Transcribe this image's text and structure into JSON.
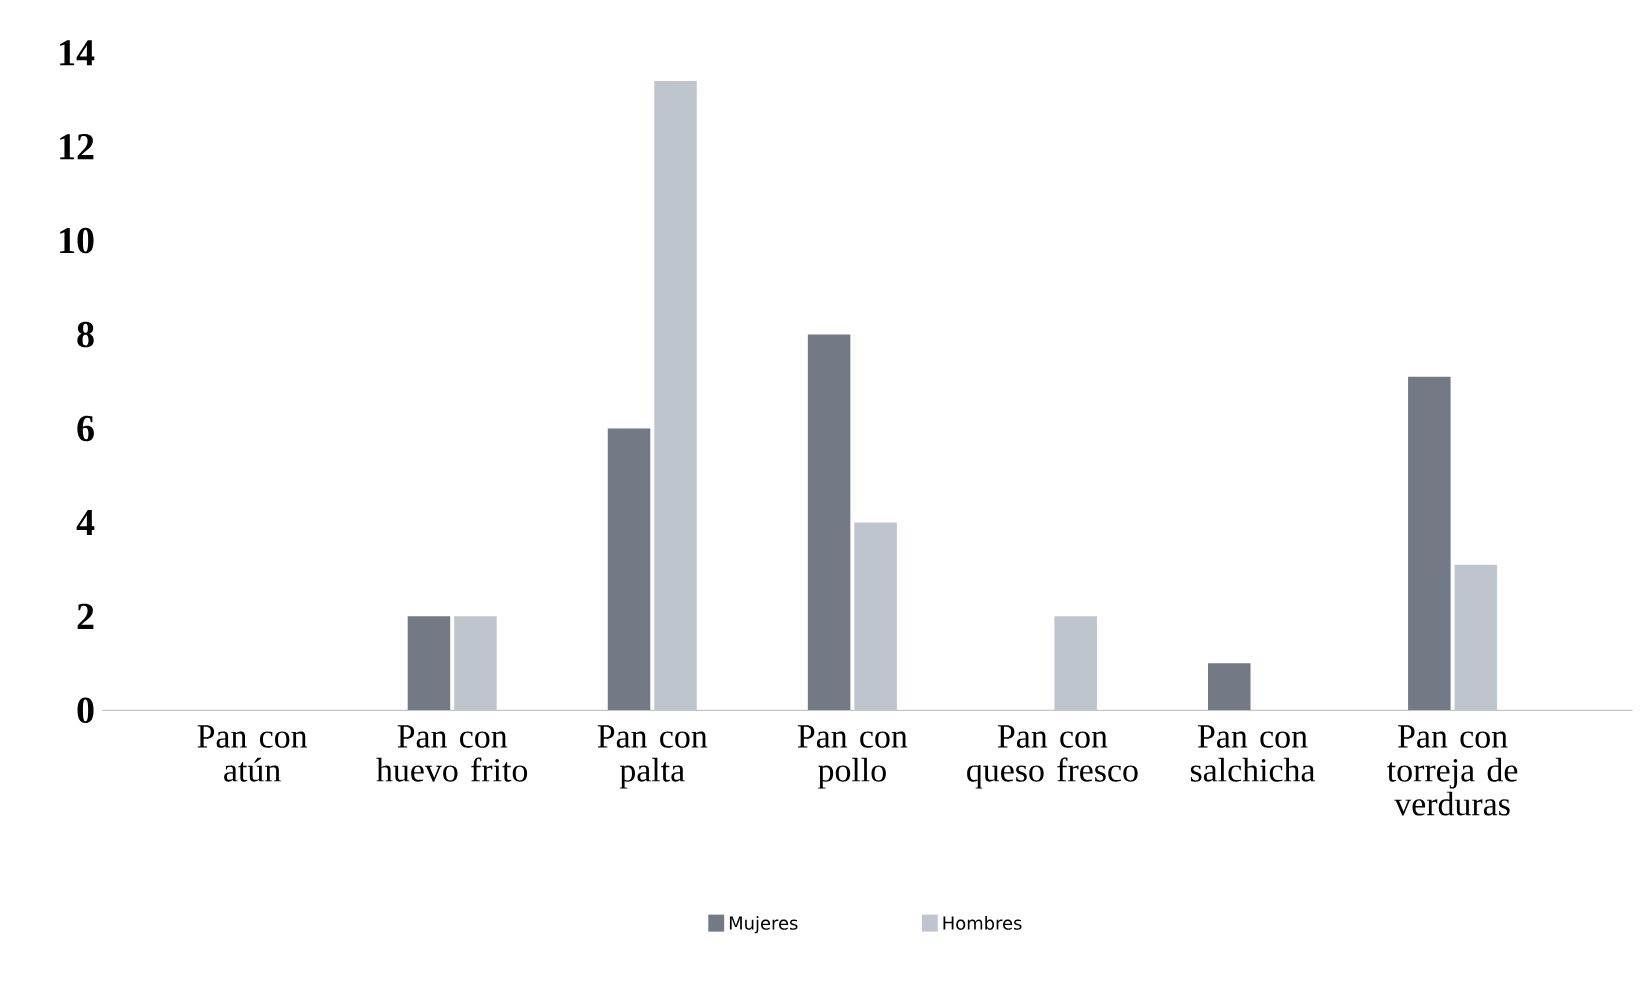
{
  "chart_data": {
    "type": "bar",
    "categories": [
      "Pan con atún",
      "Pan con huevo frito",
      "Pan con palta",
      "Pan con pollo",
      "Pan con queso fresco",
      "Pan con salchicha",
      "Pan con torreja de verduras"
    ],
    "series": [
      {
        "name": "Mujeres",
        "color": "#737a85",
        "values": [
          0,
          2,
          6,
          8,
          0,
          1,
          7.1
        ]
      },
      {
        "name": "Hombres",
        "color": "#bfc5cd",
        "values": [
          0,
          2,
          13.4,
          4,
          2,
          0,
          3.1
        ]
      }
    ],
    "ylim": [
      0,
      14
    ],
    "yticks": [
      0,
      2,
      4,
      6,
      8,
      10,
      12,
      14
    ],
    "grid": false,
    "legend": "bottom"
  }
}
